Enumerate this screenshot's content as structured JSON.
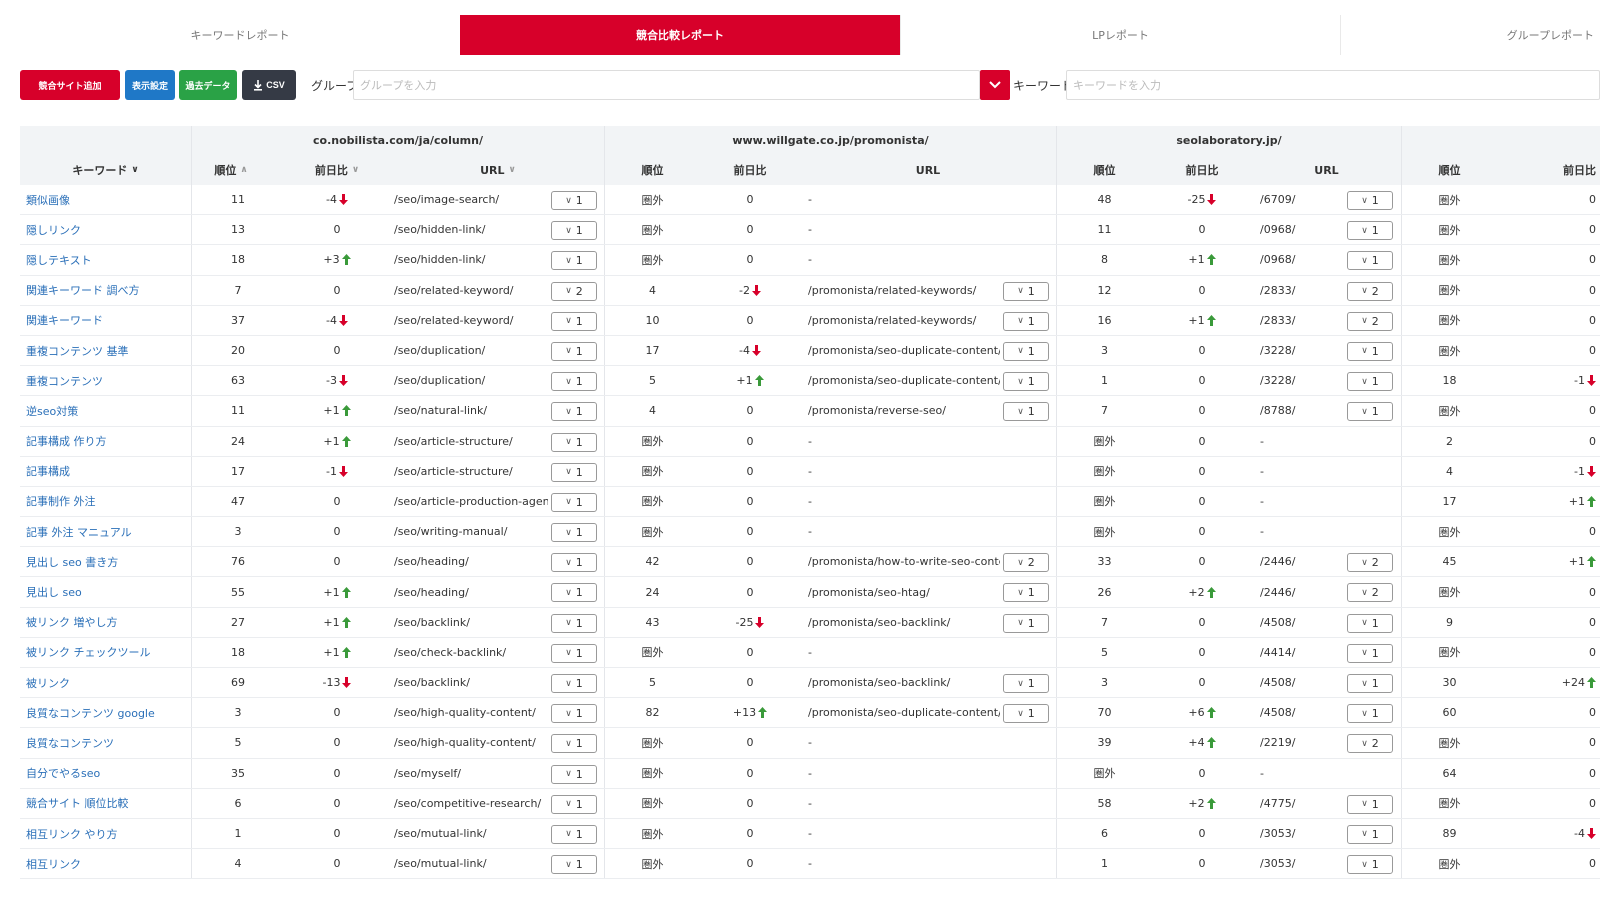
{
  "tabs": [
    "キーワードレポート",
    "競合比較レポート",
    "LPレポート",
    "グループレポート"
  ],
  "active_tab": 1,
  "toolbar": {
    "add_site": "競合サイト追加",
    "display_settings": "表示設定",
    "past_data": "過去データ",
    "csv": "CSV",
    "group_label": "グループ",
    "group_placeholder": "グループを入力",
    "keyword_label": "キーワード",
    "keyword_placeholder": "キーワードを入力"
  },
  "colors": {
    "accent": "#d7002a",
    "blue": "#1f78c7",
    "green": "#2aa246",
    "dark": "#353a45",
    "up": "#3a9a3a",
    "down": "#d7002a",
    "link": "#2a6fb8"
  },
  "sites": [
    "co.nobilista.com/ja/column/",
    "www.willgate.co.jp/promonista/",
    "seolaboratory.jp/"
  ],
  "headers": {
    "keyword": "キーワード",
    "rank": "順位",
    "change": "前日比",
    "url": "URL"
  },
  "rows": [
    {
      "kw": "類似画像",
      "s1": [
        "11",
        "-4",
        "down",
        "/seo/image-search/",
        "1"
      ],
      "s2": [
        "圏外",
        "0",
        "",
        "-",
        ""
      ],
      "s3": [
        "48",
        "-25",
        "down",
        "/6709/",
        "1"
      ],
      "s4": [
        "圏外",
        "0",
        ""
      ]
    },
    {
      "kw": "隠しリンク",
      "s1": [
        "13",
        "0",
        "",
        "/seo/hidden-link/",
        "1"
      ],
      "s2": [
        "圏外",
        "0",
        "",
        "-",
        ""
      ],
      "s3": [
        "11",
        "0",
        "",
        "/0968/",
        "1"
      ],
      "s4": [
        "圏外",
        "0",
        ""
      ]
    },
    {
      "kw": "隠しテキスト",
      "s1": [
        "18",
        "+3",
        "up",
        "/seo/hidden-link/",
        "1"
      ],
      "s2": [
        "圏外",
        "0",
        "",
        "-",
        ""
      ],
      "s3": [
        "8",
        "+1",
        "up",
        "/0968/",
        "1"
      ],
      "s4": [
        "圏外",
        "0",
        ""
      ]
    },
    {
      "kw": "関連キーワード 調べ方",
      "s1": [
        "7",
        "0",
        "",
        "/seo/related-keyword/",
        "2"
      ],
      "s2": [
        "4",
        "-2",
        "down",
        "/promonista/related-keywords/",
        "1"
      ],
      "s3": [
        "12",
        "0",
        "",
        "/2833/",
        "2"
      ],
      "s4": [
        "圏外",
        "0",
        ""
      ]
    },
    {
      "kw": "関連キーワード",
      "s1": [
        "37",
        "-4",
        "down",
        "/seo/related-keyword/",
        "1"
      ],
      "s2": [
        "10",
        "0",
        "",
        "/promonista/related-keywords/",
        "1"
      ],
      "s3": [
        "16",
        "+1",
        "up",
        "/2833/",
        "2"
      ],
      "s4": [
        "圏外",
        "0",
        ""
      ]
    },
    {
      "kw": "重複コンテンツ 基準",
      "s1": [
        "20",
        "0",
        "",
        "/seo/duplication/",
        "1"
      ],
      "s2": [
        "17",
        "-4",
        "down",
        "/promonista/seo-duplicate-content/",
        "1"
      ],
      "s3": [
        "3",
        "0",
        "",
        "/3228/",
        "1"
      ],
      "s4": [
        "圏外",
        "0",
        ""
      ]
    },
    {
      "kw": "重複コンテンツ",
      "s1": [
        "63",
        "-3",
        "down",
        "/seo/duplication/",
        "1"
      ],
      "s2": [
        "5",
        "+1",
        "up",
        "/promonista/seo-duplicate-content/",
        "1"
      ],
      "s3": [
        "1",
        "0",
        "",
        "/3228/",
        "1"
      ],
      "s4": [
        "18",
        "-1",
        "down"
      ]
    },
    {
      "kw": "逆seo対策",
      "s1": [
        "11",
        "+1",
        "up",
        "/seo/natural-link/",
        "1"
      ],
      "s2": [
        "4",
        "0",
        "",
        "/promonista/reverse-seo/",
        "1"
      ],
      "s3": [
        "7",
        "0",
        "",
        "/8788/",
        "1"
      ],
      "s4": [
        "圏外",
        "0",
        ""
      ]
    },
    {
      "kw": "記事構成 作り方",
      "s1": [
        "24",
        "+1",
        "up",
        "/seo/article-structure/",
        "1"
      ],
      "s2": [
        "圏外",
        "0",
        "",
        "-",
        ""
      ],
      "s3": [
        "圏外",
        "0",
        "",
        "-",
        ""
      ],
      "s4": [
        "2",
        "0",
        ""
      ]
    },
    {
      "kw": "記事構成",
      "s1": [
        "17",
        "-1",
        "down",
        "/seo/article-structure/",
        "1"
      ],
      "s2": [
        "圏外",
        "0",
        "",
        "-",
        ""
      ],
      "s3": [
        "圏外",
        "0",
        "",
        "-",
        ""
      ],
      "s4": [
        "4",
        "-1",
        "down"
      ]
    },
    {
      "kw": "記事制作 外注",
      "s1": [
        "47",
        "0",
        "",
        "/seo/article-production-agen...",
        "1"
      ],
      "s2": [
        "圏外",
        "0",
        "",
        "-",
        ""
      ],
      "s3": [
        "圏外",
        "0",
        "",
        "-",
        ""
      ],
      "s4": [
        "17",
        "+1",
        "up"
      ]
    },
    {
      "kw": "記事 外注 マニュアル",
      "s1": [
        "3",
        "0",
        "",
        "/seo/writing-manual/",
        "1"
      ],
      "s2": [
        "圏外",
        "0",
        "",
        "-",
        ""
      ],
      "s3": [
        "圏外",
        "0",
        "",
        "-",
        ""
      ],
      "s4": [
        "圏外",
        "0",
        ""
      ]
    },
    {
      "kw": "見出し seo 書き方",
      "s1": [
        "76",
        "0",
        "",
        "/seo/heading/",
        "1"
      ],
      "s2": [
        "42",
        "0",
        "",
        "/promonista/how-to-write-seo-conte...",
        "2"
      ],
      "s3": [
        "33",
        "0",
        "",
        "/2446/",
        "2"
      ],
      "s4": [
        "45",
        "+1",
        "up"
      ]
    },
    {
      "kw": "見出し seo",
      "s1": [
        "55",
        "+1",
        "up",
        "/seo/heading/",
        "1"
      ],
      "s2": [
        "24",
        "0",
        "",
        "/promonista/seo-htag/",
        "1"
      ],
      "s3": [
        "26",
        "+2",
        "up",
        "/2446/",
        "2"
      ],
      "s4": [
        "圏外",
        "0",
        ""
      ]
    },
    {
      "kw": "被リンク 増やし方",
      "s1": [
        "27",
        "+1",
        "up",
        "/seo/backlink/",
        "1"
      ],
      "s2": [
        "43",
        "-25",
        "down",
        "/promonista/seo-backlink/",
        "1"
      ],
      "s3": [
        "7",
        "0",
        "",
        "/4508/",
        "1"
      ],
      "s4": [
        "9",
        "0",
        ""
      ]
    },
    {
      "kw": "被リンク チェックツール",
      "s1": [
        "18",
        "+1",
        "up",
        "/seo/check-backlink/",
        "1"
      ],
      "s2": [
        "圏外",
        "0",
        "",
        "-",
        ""
      ],
      "s3": [
        "5",
        "0",
        "",
        "/4414/",
        "1"
      ],
      "s4": [
        "圏外",
        "0",
        ""
      ]
    },
    {
      "kw": "被リンク",
      "s1": [
        "69",
        "-13",
        "down",
        "/seo/backlink/",
        "1"
      ],
      "s2": [
        "5",
        "0",
        "",
        "/promonista/seo-backlink/",
        "1"
      ],
      "s3": [
        "3",
        "0",
        "",
        "/4508/",
        "1"
      ],
      "s4": [
        "30",
        "+24",
        "up"
      ]
    },
    {
      "kw": "良質なコンテンツ google",
      "s1": [
        "3",
        "0",
        "",
        "/seo/high-quality-content/",
        "1"
      ],
      "s2": [
        "82",
        "+13",
        "up",
        "/promonista/seo-duplicate-content/",
        "1"
      ],
      "s3": [
        "70",
        "+6",
        "up",
        "/4508/",
        "1"
      ],
      "s4": [
        "60",
        "0",
        ""
      ]
    },
    {
      "kw": "良質なコンテンツ",
      "s1": [
        "5",
        "0",
        "",
        "/seo/high-quality-content/",
        "1"
      ],
      "s2": [
        "圏外",
        "0",
        "",
        "-",
        ""
      ],
      "s3": [
        "39",
        "+4",
        "up",
        "/2219/",
        "2"
      ],
      "s4": [
        "圏外",
        "0",
        ""
      ]
    },
    {
      "kw": "自分でやるseo",
      "s1": [
        "35",
        "0",
        "",
        "/seo/myself/",
        "1"
      ],
      "s2": [
        "圏外",
        "0",
        "",
        "-",
        ""
      ],
      "s3": [
        "圏外",
        "0",
        "",
        "-",
        ""
      ],
      "s4": [
        "64",
        "0",
        ""
      ]
    },
    {
      "kw": "競合サイト 順位比較",
      "s1": [
        "6",
        "0",
        "",
        "/seo/competitive-research/",
        "1"
      ],
      "s2": [
        "圏外",
        "0",
        "",
        "-",
        ""
      ],
      "s3": [
        "58",
        "+2",
        "up",
        "/4775/",
        "1"
      ],
      "s4": [
        "圏外",
        "0",
        ""
      ]
    },
    {
      "kw": "相互リンク やり方",
      "s1": [
        "1",
        "0",
        "",
        "/seo/mutual-link/",
        "1"
      ],
      "s2": [
        "圏外",
        "0",
        "",
        "-",
        ""
      ],
      "s3": [
        "6",
        "0",
        "",
        "/3053/",
        "1"
      ],
      "s4": [
        "89",
        "-4",
        "down"
      ]
    },
    {
      "kw": "相互リンク",
      "s1": [
        "4",
        "0",
        "",
        "/seo/mutual-link/",
        "1"
      ],
      "s2": [
        "圏外",
        "0",
        "",
        "-",
        ""
      ],
      "s3": [
        "1",
        "0",
        "",
        "/3053/",
        "1"
      ],
      "s4": [
        "圏外",
        "0",
        ""
      ]
    }
  ]
}
